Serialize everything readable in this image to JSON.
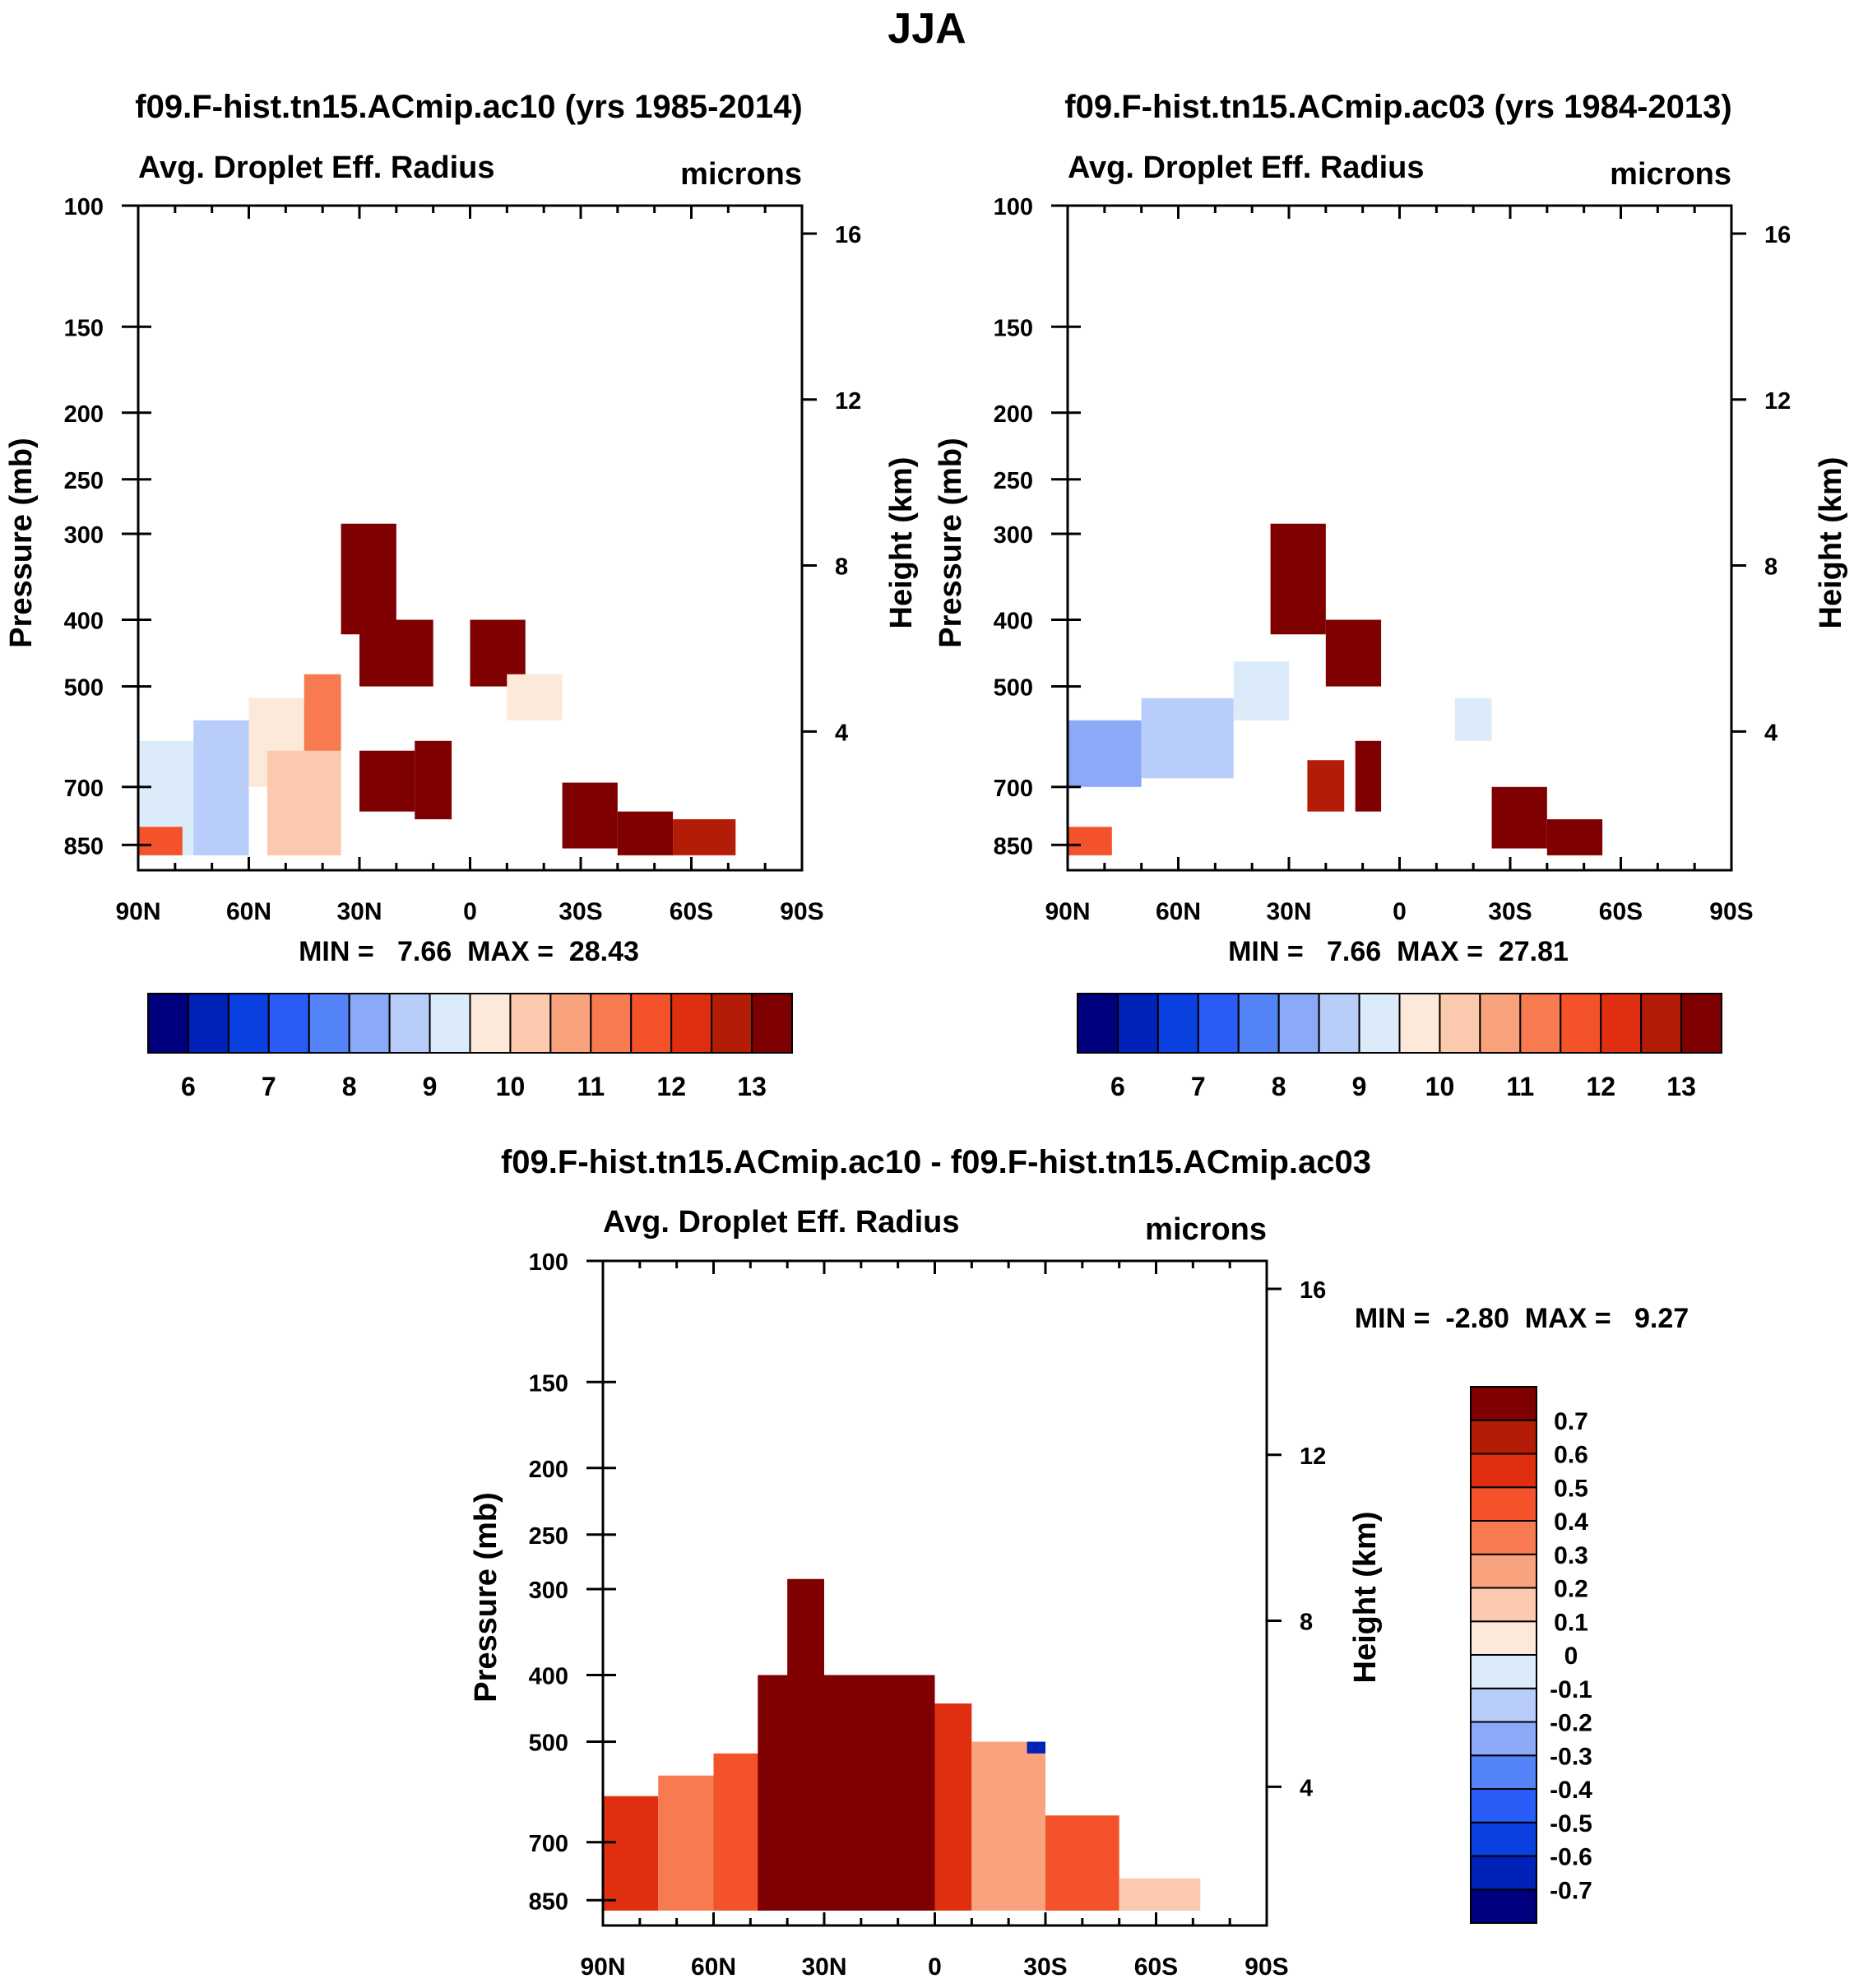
{
  "figure": {
    "title": "JJA"
  },
  "panels": [
    {
      "id": "ac10",
      "title": "f09.F-hist.tn15.ACmip.ac10 (yrs 1985-2014)",
      "variable": "Avg. Droplet Eff. Radius",
      "units": "microns",
      "min_max": "MIN =   7.66  MAX =  28.43",
      "ylabel_left": "Pressure (mb)",
      "ylabel_right": "Height (km)"
    },
    {
      "id": "ac03",
      "title": "f09.F-hist.tn15.ACmip.ac03 (yrs 1984-2013)",
      "variable": "Avg. Droplet Eff. Radius",
      "units": "microns",
      "min_max": "MIN =   7.66  MAX =  27.81",
      "ylabel_left": "Pressure (mb)",
      "ylabel_right": "Height (km)"
    },
    {
      "id": "diff",
      "title": "f09.F-hist.tn15.ACmip.ac10 - f09.F-hist.tn15.ACmip.ac03",
      "variable": "Avg. Droplet Eff. Radius",
      "units": "microns",
      "min_max": "MIN =  -2.80  MAX =   9.27",
      "ylabel_left": "Pressure (mb)",
      "ylabel_right": "Height (km)"
    }
  ],
  "colors": {
    "base": [
      "#00007f",
      "#0022b8",
      "#0a3fe0",
      "#2a5cf7",
      "#5483f7",
      "#8aaaf7",
      "#b8cdf9",
      "#dcebfa",
      "#fde9da",
      "#fbc9ad",
      "#f9a27e",
      "#f77a50",
      "#f4522b",
      "#e02f10",
      "#b31d08",
      "#7f0000"
    ],
    "diff": [
      "#00007f",
      "#0022b8",
      "#0a3fe0",
      "#2a5cf7",
      "#5483f7",
      "#8aaaf7",
      "#b8cdf9",
      "#dcebfa",
      "#fde9da",
      "#fbc9ad",
      "#f9a27e",
      "#f77a50",
      "#f4522b",
      "#e02f10",
      "#b31d08",
      "#7f0000"
    ]
  },
  "chart_data": [
    {
      "type": "heatmap",
      "panel": "ac10",
      "x_axis": {
        "ticks": [
          "90N",
          "60N",
          "30N",
          "0",
          "30S",
          "60S",
          "90S"
        ],
        "range": [
          90,
          -90
        ],
        "units": "degrees latitude"
      },
      "y_axis_left": {
        "ticks": [
          100,
          150,
          200,
          250,
          300,
          400,
          500,
          700,
          850
        ],
        "scale": "log",
        "units": "mb"
      },
      "y_axis_right": {
        "ticks": [
          16,
          12,
          8,
          4
        ],
        "units": "km"
      },
      "colorbar": {
        "levels": [
          6,
          6.5,
          7,
          7.5,
          8,
          8.5,
          9,
          9.5,
          10,
          10.5,
          11,
          11.5,
          12,
          12.5,
          13
        ],
        "labels": [
          "6",
          "7",
          "8",
          "9",
          "10",
          "11",
          "12",
          "13"
        ]
      },
      "cells": [
        {
          "lat": [
            90,
            75
          ],
          "p": [
            600,
            880
          ],
          "v": 9
        },
        {
          "lat": [
            75,
            60
          ],
          "p": [
            560,
            880
          ],
          "v": 8.5
        },
        {
          "lat": [
            60,
            45
          ],
          "p": [
            520,
            700
          ],
          "v": 9.5
        },
        {
          "lat": [
            45,
            35
          ],
          "p": [
            480,
            640
          ],
          "v": 11
        },
        {
          "lat": [
            35,
            20
          ],
          "p": [
            290,
            420
          ],
          "v": 13.5
        },
        {
          "lat": [
            30,
            10
          ],
          "p": [
            400,
            500
          ],
          "v": 13.5
        },
        {
          "lat": [
            30,
            15
          ],
          "p": [
            620,
            760
          ],
          "v": 13.5
        },
        {
          "lat": [
            15,
            5
          ],
          "p": [
            600,
            780
          ],
          "v": 13.5
        },
        {
          "lat": [
            0,
            -15
          ],
          "p": [
            400,
            500
          ],
          "v": 13.5
        },
        {
          "lat": [
            -10,
            -25
          ],
          "p": [
            480,
            560
          ],
          "v": 9.5
        },
        {
          "lat": [
            -25,
            -40
          ],
          "p": [
            690,
            860
          ],
          "v": 13.5
        },
        {
          "lat": [
            -40,
            -55
          ],
          "p": [
            760,
            880
          ],
          "v": 13.5
        },
        {
          "lat": [
            -55,
            -72
          ],
          "p": [
            780,
            880
          ],
          "v": 12.5
        },
        {
          "lat": [
            90,
            78
          ],
          "p": [
            800,
            880
          ],
          "v": 11.5
        },
        {
          "lat": [
            55,
            35
          ],
          "p": [
            620,
            880
          ],
          "v": 10
        }
      ]
    },
    {
      "type": "heatmap",
      "panel": "ac03",
      "x_axis": {
        "ticks": [
          "90N",
          "60N",
          "30N",
          "0",
          "30S",
          "60S",
          "90S"
        ],
        "range": [
          90,
          -90
        ],
        "units": "degrees latitude"
      },
      "y_axis_left": {
        "ticks": [
          100,
          150,
          200,
          250,
          300,
          400,
          500,
          700,
          850
        ],
        "scale": "log",
        "units": "mb"
      },
      "y_axis_right": {
        "ticks": [
          16,
          12,
          8,
          4
        ],
        "units": "km"
      },
      "colorbar": {
        "levels": [
          6,
          6.5,
          7,
          7.5,
          8,
          8.5,
          9,
          9.5,
          10,
          10.5,
          11,
          11.5,
          12,
          12.5,
          13
        ],
        "labels": [
          "6",
          "7",
          "8",
          "9",
          "10",
          "11",
          "12",
          "13"
        ]
      },
      "cells": [
        {
          "lat": [
            90,
            70
          ],
          "p": [
            560,
            700
          ],
          "v": 8
        },
        {
          "lat": [
            70,
            45
          ],
          "p": [
            520,
            680
          ],
          "v": 8.5
        },
        {
          "lat": [
            45,
            30
          ],
          "p": [
            460,
            560
          ],
          "v": 9
        },
        {
          "lat": [
            35,
            20
          ],
          "p": [
            290,
            420
          ],
          "v": 13.5
        },
        {
          "lat": [
            20,
            5
          ],
          "p": [
            400,
            500
          ],
          "v": 13.5
        },
        {
          "lat": [
            25,
            15
          ],
          "p": [
            640,
            760
          ],
          "v": 12.5
        },
        {
          "lat": [
            12,
            5
          ],
          "p": [
            600,
            760
          ],
          "v": 13.5
        },
        {
          "lat": [
            -15,
            -25
          ],
          "p": [
            520,
            600
          ],
          "v": 9
        },
        {
          "lat": [
            -25,
            -40
          ],
          "p": [
            700,
            860
          ],
          "v": 13
        },
        {
          "lat": [
            -40,
            -55
          ],
          "p": [
            780,
            880
          ],
          "v": 13.5
        },
        {
          "lat": [
            90,
            78
          ],
          "p": [
            800,
            880
          ],
          "v": 11.5
        }
      ]
    },
    {
      "type": "heatmap",
      "panel": "diff",
      "x_axis": {
        "ticks": [
          "90N",
          "60N",
          "30N",
          "0",
          "30S",
          "60S",
          "90S"
        ],
        "range": [
          90,
          -90
        ],
        "units": "degrees latitude"
      },
      "y_axis_left": {
        "ticks": [
          100,
          150,
          200,
          250,
          300,
          400,
          500,
          700,
          850
        ],
        "scale": "log",
        "units": "mb"
      },
      "y_axis_right": {
        "ticks": [
          16,
          12,
          8,
          4
        ],
        "units": "km"
      },
      "colorbar": {
        "levels": [
          -0.7,
          -0.6,
          -0.5,
          -0.4,
          -0.3,
          -0.2,
          -0.1,
          0,
          0.1,
          0.2,
          0.3,
          0.4,
          0.5,
          0.6,
          0.7
        ],
        "labels": [
          "-0.7",
          "-0.6",
          "-0.5",
          "-0.4",
          "-0.3",
          "-0.2",
          "-0.1",
          "0",
          "0.1",
          "0.2",
          "0.3",
          "0.4",
          "0.5",
          "0.6",
          "0.7"
        ]
      },
      "cells": [
        {
          "lat": [
            90,
            75
          ],
          "p": [
            600,
            880
          ],
          "v": 0.5
        },
        {
          "lat": [
            75,
            60
          ],
          "p": [
            560,
            880
          ],
          "v": 0.3
        },
        {
          "lat": [
            60,
            45
          ],
          "p": [
            520,
            880
          ],
          "v": 0.45
        },
        {
          "lat": [
            48,
            0
          ],
          "p": [
            400,
            880
          ],
          "v": 0.8
        },
        {
          "lat": [
            40,
            30
          ],
          "p": [
            290,
            400
          ],
          "v": 0.8
        },
        {
          "lat": [
            0,
            -10
          ],
          "p": [
            440,
            880
          ],
          "v": 0.5
        },
        {
          "lat": [
            -10,
            -30
          ],
          "p": [
            500,
            880
          ],
          "v": 0.25
        },
        {
          "lat": [
            -30,
            -50
          ],
          "p": [
            640,
            880
          ],
          "v": 0.45
        },
        {
          "lat": [
            -50,
            -72
          ],
          "p": [
            790,
            880
          ],
          "v": 0.15
        },
        {
          "lat": [
            -25,
            -30
          ],
          "p": [
            500,
            520
          ],
          "v": -0.7
        }
      ]
    }
  ]
}
